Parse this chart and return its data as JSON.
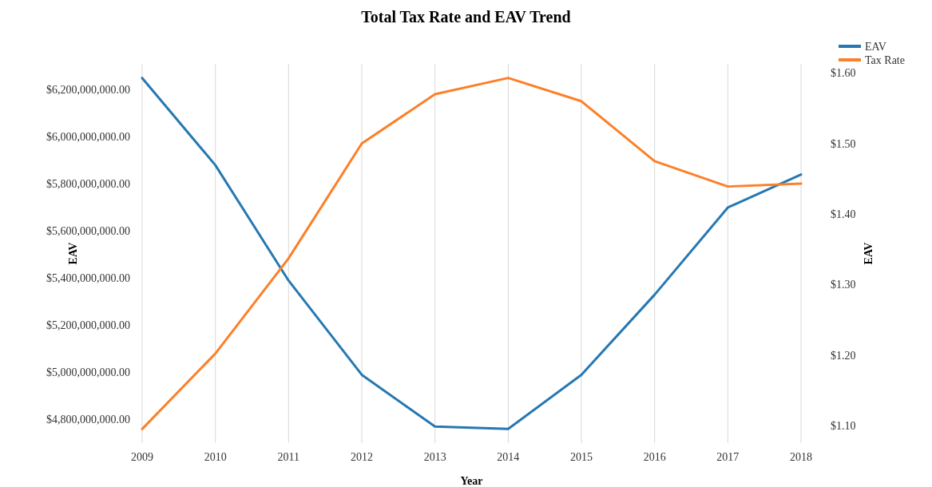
{
  "chart_data": {
    "type": "line",
    "title": "Total Tax Rate and EAV Trend",
    "xlabel": "Year",
    "ylabel": "EAV",
    "y2label": "EAV",
    "x": [
      2009,
      2010,
      2011,
      2012,
      2013,
      2014,
      2015,
      2016,
      2017,
      2018
    ],
    "xlim": [
      2009,
      2018
    ],
    "xticks": [
      2009,
      2010,
      2011,
      2012,
      2013,
      2014,
      2015,
      2016,
      2017,
      2018
    ],
    "ylim": [
      4700000000,
      6310000000
    ],
    "yticks": [
      {
        "value": 4800000000,
        "label": "$4,800,000,000.00"
      },
      {
        "value": 5000000000,
        "label": "$5,000,000,000.00"
      },
      {
        "value": 5200000000,
        "label": "$5,200,000,000.00"
      },
      {
        "value": 5400000000,
        "label": "$5,400,000,000.00"
      },
      {
        "value": 5600000000,
        "label": "$5,600,000,000.00"
      },
      {
        "value": 5800000000,
        "label": "$5,800,000,000.00"
      },
      {
        "value": 6000000000,
        "label": "$6,000,000,000.00"
      },
      {
        "value": 6200000000,
        "label": "$6,200,000,000.00"
      }
    ],
    "y2lim": [
      1.075,
      1.613
    ],
    "y2ticks": [
      {
        "value": 1.1,
        "label": "$1.10"
      },
      {
        "value": 1.2,
        "label": "$1.20"
      },
      {
        "value": 1.3,
        "label": "$1.30"
      },
      {
        "value": 1.4,
        "label": "$1.40"
      },
      {
        "value": 1.5,
        "label": "$1.50"
      },
      {
        "value": 1.6,
        "label": "$1.60"
      }
    ],
    "grid": "x",
    "legend": "top right",
    "marker": "none",
    "line_style": "solid",
    "series": [
      {
        "name": "EAV",
        "color": "#2678b2",
        "values": [
          6250000000,
          5880000000,
          5390000000,
          4990000000,
          4770000000,
          4760000000,
          4990000000,
          5330000000,
          5700000000,
          5840000000
        ]
      },
      {
        "name": "Tax Rate",
        "color": "#fd7f28",
        "axis": "y2",
        "values": [
          1.095,
          1.202,
          1.337,
          1.5,
          1.57,
          1.593,
          1.56,
          1.475,
          1.439,
          1.443
        ]
      }
    ]
  }
}
